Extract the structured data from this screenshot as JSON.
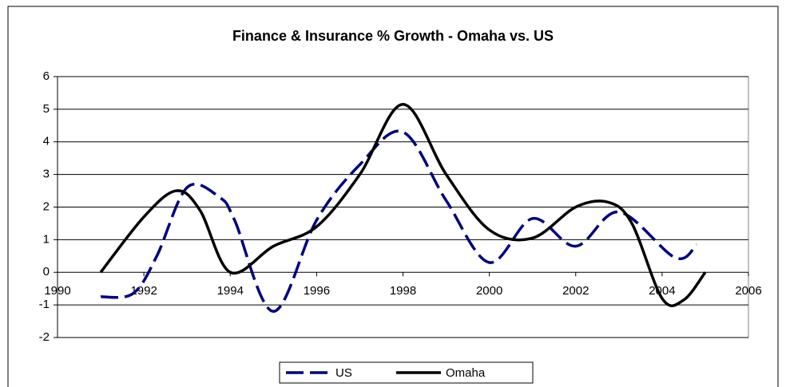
{
  "chart_data": {
    "type": "line",
    "title": "Finance & Insurance % Growth - Omaha vs. US",
    "x_type": "numeric",
    "series": [
      {
        "name": "US",
        "color": "#000080",
        "dash": true,
        "x": [
          1991,
          1991.75,
          1992.3,
          1993,
          1993.75,
          1994.1,
          1995,
          1996,
          1997,
          1998,
          1999,
          2000,
          2001,
          2002,
          2003,
          2004.3,
          2004.8
        ],
        "values": [
          -0.75,
          -0.65,
          0.5,
          2.6,
          2.3,
          1.6,
          -1.2,
          1.6,
          3.3,
          4.3,
          2.2,
          0.3,
          1.65,
          0.8,
          1.85,
          0.45,
          0.85
        ]
      },
      {
        "name": "Omaha",
        "color": "#000000",
        "dash": false,
        "x": [
          1991,
          1992,
          1992.75,
          1993.3,
          1994,
          1995,
          1996,
          1997,
          1998,
          1999,
          2000,
          2001,
          2002,
          2002.75,
          2003.3,
          2004,
          2004.5,
          2005
        ],
        "values": [
          0,
          1.7,
          2.5,
          1.9,
          0,
          0.8,
          1.4,
          3,
          5.15,
          3,
          1.3,
          1.05,
          2.0,
          2.15,
          1.5,
          -0.8,
          -0.85,
          0
        ]
      }
    ],
    "xlim": [
      1990,
      2006
    ],
    "xticks": [
      1990,
      1992,
      1994,
      1996,
      1998,
      2000,
      2002,
      2004,
      2006
    ],
    "ylim": [
      -2,
      6
    ],
    "yticks": [
      -2,
      -1,
      0,
      1,
      2,
      3,
      4,
      5,
      6
    ],
    "grid": true,
    "legend": "bottom"
  }
}
